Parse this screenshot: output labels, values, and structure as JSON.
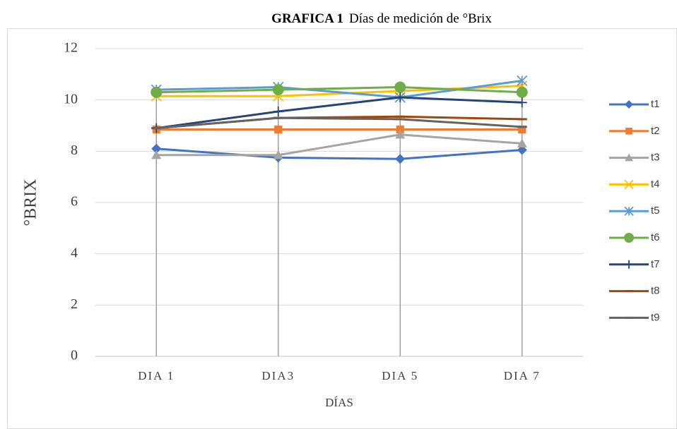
{
  "chart_data": {
    "type": "line",
    "title_bold": "GRAFICA 1",
    "title": "Días de medición de °Brix",
    "ylabel": "°BRIX",
    "xlabel": "DÍAS",
    "categories": [
      "DIA 1",
      "DIA3",
      "DIA 5",
      "DIA 7"
    ],
    "ylim": [
      0,
      12
    ],
    "yticks": [
      0,
      2,
      4,
      6,
      8,
      10,
      12
    ],
    "grid": true,
    "drop_lines": true,
    "legend": "right",
    "series": [
      {
        "name": "t1",
        "color": "#4472c4",
        "marker": "diamond",
        "values": [
          8.1,
          7.75,
          7.7,
          8.05
        ]
      },
      {
        "name": "t2",
        "color": "#ed7d31",
        "marker": "square",
        "values": [
          8.85,
          8.85,
          8.85,
          8.85
        ]
      },
      {
        "name": "t3",
        "color": "#a5a5a5",
        "marker": "triangle",
        "values": [
          7.85,
          7.85,
          8.65,
          8.3
        ]
      },
      {
        "name": "t4",
        "color": "#ffc000",
        "marker": "x",
        "values": [
          10.15,
          10.15,
          10.35,
          10.55
        ]
      },
      {
        "name": "t5",
        "color": "#5b9bd5",
        "marker": "star",
        "values": [
          10.4,
          10.5,
          10.1,
          10.75
        ]
      },
      {
        "name": "t6",
        "color": "#70ad47",
        "marker": "circle",
        "values": [
          10.3,
          10.4,
          10.5,
          10.3
        ]
      },
      {
        "name": "t7",
        "color": "#264478",
        "marker": "plus",
        "values": [
          8.9,
          9.55,
          10.1,
          9.9
        ]
      },
      {
        "name": "t8",
        "color": "#9e480e",
        "marker": "dash",
        "values": [
          8.9,
          9.3,
          9.35,
          9.25
        ]
      },
      {
        "name": "t9",
        "color": "#636363",
        "marker": "dash",
        "values": [
          8.9,
          9.3,
          9.25,
          8.95
        ]
      }
    ]
  }
}
